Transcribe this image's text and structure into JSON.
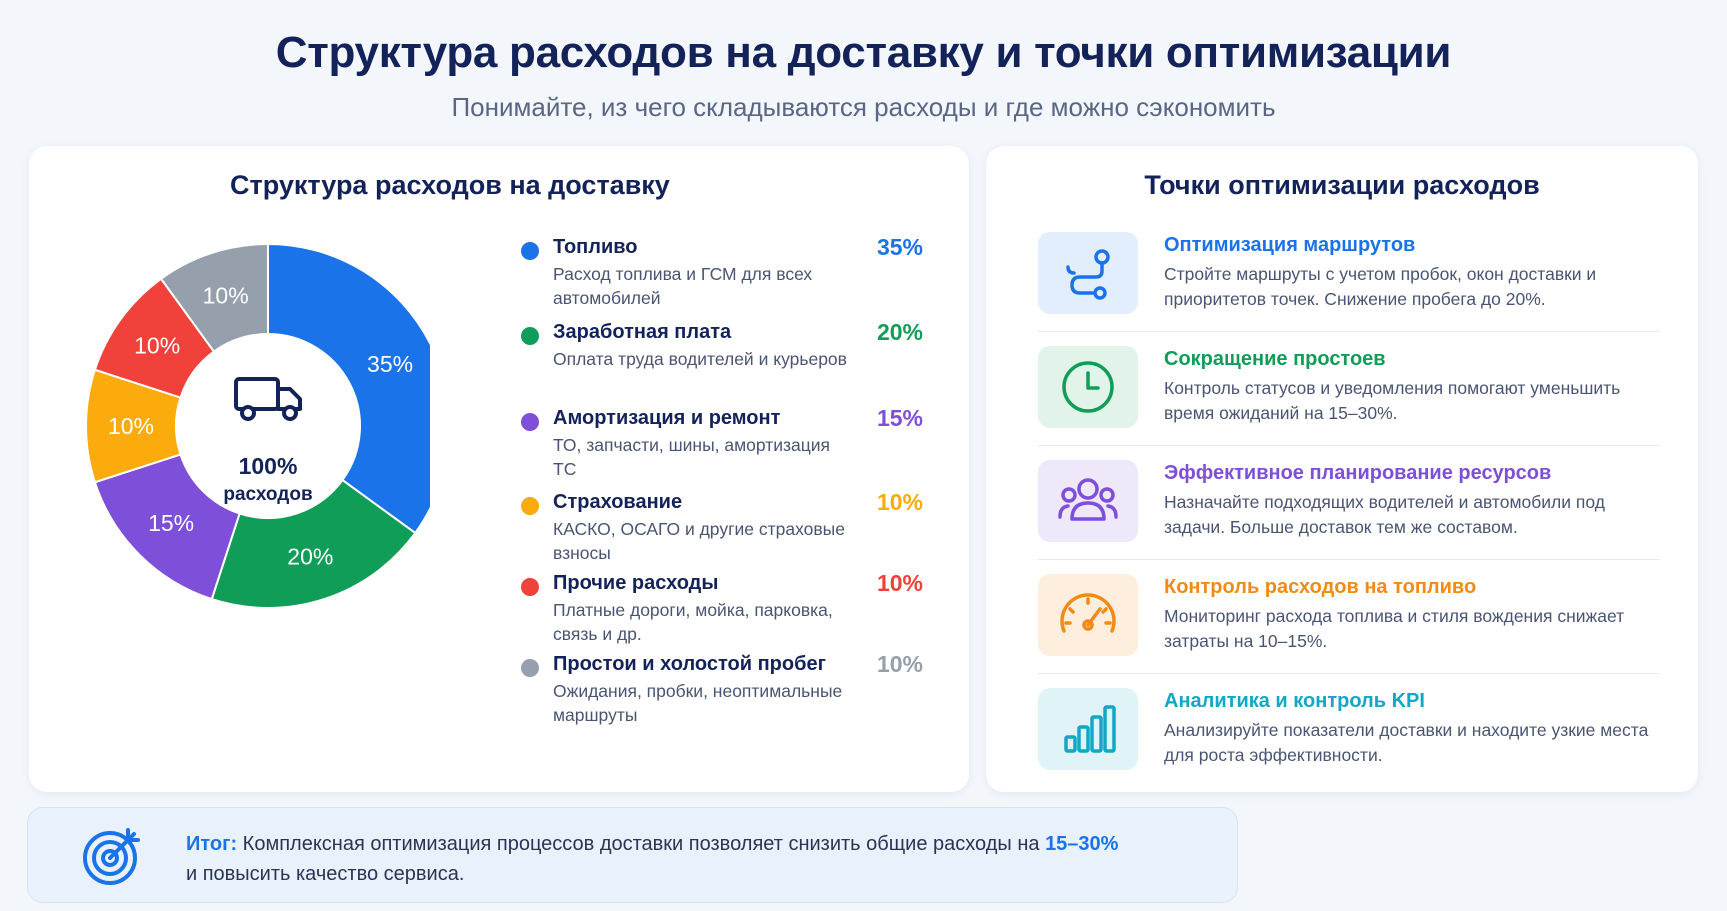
{
  "header": {
    "title": "Структура расходов на доставку и точки оптимизации",
    "subtitle": "Понимайте, из чего складываются расходы и где можно сэкономить"
  },
  "left_panel": {
    "title": "Структура расходов на доставку"
  },
  "chart_data": {
    "type": "pie",
    "variant": "donut",
    "unit": "%",
    "center_value": "100%",
    "center_label": "расходов",
    "center_icon": "truck-icon",
    "slices": [
      {
        "name": "Топливо",
        "value": 35,
        "label": "35%",
        "color": "#1a73e8",
        "description": "Расход топлива и ГСМ для всех автомобилей"
      },
      {
        "name": "Заработная плата",
        "value": 20,
        "label": "20%",
        "color": "#0f9d58",
        "description": "Оплата труда водителей и курьеров"
      },
      {
        "name": "Амортизация и ремонт",
        "value": 15,
        "label": "15%",
        "color": "#7e4fd8",
        "description": "ТО, запчасти, шины, амортизация ТС"
      },
      {
        "name": "Страхование",
        "value": 10,
        "label": "10%",
        "color": "#fbab0c",
        "description": "КАСКО, ОСАГО и другие страховые взносы"
      },
      {
        "name": "Прочие расходы",
        "value": 10,
        "label": "10%",
        "color": "#f0413b",
        "description": "Платные дороги, мойка, парковка, связь и др."
      },
      {
        "name": "Простои и холостой пробег",
        "value": 10,
        "label": "10%",
        "color": "#96a0ad",
        "description": "Ожидания, пробки, неоптимальные маршруты"
      }
    ]
  },
  "right_panel": {
    "title": "Точки оптимизации расходов",
    "items": [
      {
        "title": "Оптимизация маршрутов",
        "description": "Стройте маршруты с учетом пробок, окон доставки и приоритетов точек. Снижение пробега до 20%.",
        "color": "#1a73e8",
        "bg": "#e3eefc",
        "icon": "route-icon"
      },
      {
        "title": "Сокращение простоев",
        "description": "Контроль статусов и уведомления помогают уменьшить время ожиданий на 15–30%.",
        "color": "#0f9d58",
        "bg": "#e2f4e9",
        "icon": "clock-icon"
      },
      {
        "title": "Эффективное планирование ресурсов",
        "description": "Назначайте подходящих водителей и автомобили под задачи. Больше доставок тем же составом.",
        "color": "#7e4fd8",
        "bg": "#efe8fb",
        "icon": "people-icon"
      },
      {
        "title": "Контроль расходов на топливо",
        "description": "Мониторинг расхода топлива и стиля вождения снижает затраты на 10–15%.",
        "color": "#f28b16",
        "bg": "#fdeede",
        "icon": "speedometer-icon"
      },
      {
        "title": "Аналитика и контроль KPI",
        "description": "Анализируйте показатели доставки и находите узкие места для роста эффективности.",
        "color": "#12a7c4",
        "bg": "#e0f4f8",
        "icon": "bar-chart-icon"
      }
    ]
  },
  "summary": {
    "label": "Итог:",
    "text_before": " Комплексная оптимизация процессов доставки позволяет снизить общие расходы на ",
    "highlight": "15–30%",
    "text_after": "и повысить качество сервиса.",
    "icon": "target-icon",
    "accent": "#1a73e8"
  }
}
